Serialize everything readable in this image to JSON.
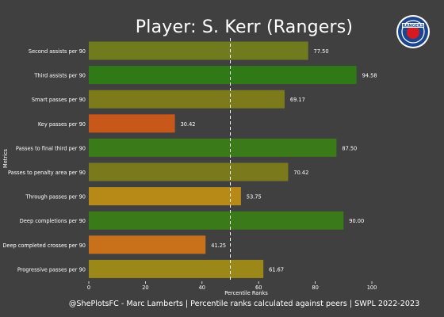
{
  "header": {
    "title": "Player: S. Kerr (Rangers)"
  },
  "footer": {
    "credit": "@ShePlotsFC - Marc Lamberts | Percentile ranks calculated against peers | SWPL 2022-2023"
  },
  "logo": {
    "label": "RANGERS",
    "colors": {
      "outer": "#1b458f",
      "ring": "#ffffff",
      "inner": "#d71920"
    }
  },
  "chart_data": {
    "type": "bar",
    "orientation": "horizontal",
    "xlabel": "Percentile Ranks",
    "ylabel": "Metrics",
    "xlim": [
      0,
      100
    ],
    "xticks": [
      0,
      20,
      40,
      60,
      80,
      100
    ],
    "reference_line": 50,
    "grid": false,
    "categories": [
      "Second assists per 90",
      "Third assists per 90",
      "Smart passes per 90",
      "Key passes per 90",
      "Passes to final third per 90",
      "Passes to penalty area per 90",
      "Through passes per 90",
      "Deep completions per 90",
      "Deep completed crosses per 90",
      "Progressive passes per 90"
    ],
    "values": [
      77.5,
      94.58,
      69.17,
      30.42,
      87.5,
      70.42,
      53.75,
      90.0,
      41.25,
      61.67
    ],
    "value_labels": [
      "77.50",
      "94.58",
      "69.17",
      "30.42",
      "87.50",
      "70.42",
      "53.75",
      "90.00",
      "41.25",
      "61.67"
    ],
    "colors": [
      "#6f7b1c",
      "#2f7a16",
      "#7d7a1c",
      "#c7581a",
      "#3a7a18",
      "#7a7a1c",
      "#b78a18",
      "#3a7a18",
      "#c8711a",
      "#9c8719"
    ]
  }
}
